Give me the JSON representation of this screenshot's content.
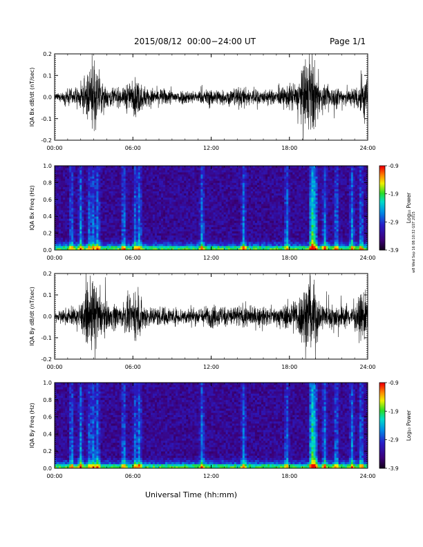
{
  "header": {
    "title": "2015/08/12  00:00−24:00 UT",
    "page": "Page 1/1",
    "timestamp": "w8 Wed Sep 16 08:10:32 GST 2015"
  },
  "xlabel": "Universal Time (hh:mm)",
  "chart_data": [
    {
      "type": "line",
      "title": "",
      "xlabel": "",
      "ylabel": "IQA Bx dB/dt (nT/sec)",
      "xticks": [
        "00:00",
        "06:00",
        "12:00",
        "18:00",
        "24:00"
      ],
      "xlim_hours": [
        0,
        24
      ],
      "ylim": [
        -0.2,
        0.2
      ],
      "yticks": [
        "0.2",
        "0.1",
        "0.0",
        "-0.1",
        "-0.2"
      ],
      "yvalues": [
        0.2,
        0.1,
        0.0,
        -0.1,
        -0.2
      ],
      "activity_envelope": {
        "hours": [
          0,
          0.5,
          1,
          1.5,
          2,
          2.5,
          2.8,
          3.1,
          3.4,
          3.8,
          4.2,
          4.6,
          5.2,
          5.6,
          5.9,
          6.2,
          6.6,
          7.2,
          8,
          9,
          10,
          11,
          12,
          13,
          14,
          15,
          16,
          17,
          17.8,
          18.3,
          18.7,
          19.2,
          19.6,
          19.9,
          20.3,
          20.8,
          21.5,
          22.2,
          22.8,
          23.3,
          23.7,
          24
        ],
        "amplitude": [
          0.02,
          0.03,
          0.06,
          0.05,
          0.08,
          0.15,
          0.25,
          0.25,
          0.12,
          0.1,
          0.06,
          0.08,
          0.05,
          0.12,
          0.07,
          0.15,
          0.1,
          0.06,
          0.06,
          0.05,
          0.05,
          0.04,
          0.06,
          0.05,
          0.07,
          0.06,
          0.05,
          0.05,
          0.08,
          0.1,
          0.12,
          0.25,
          0.25,
          0.25,
          0.1,
          0.07,
          0.08,
          0.07,
          0.06,
          0.1,
          0.18,
          0.12
        ]
      }
    },
    {
      "type": "heatmap",
      "title": "",
      "xlabel": "",
      "ylabel": "IQA Bx Freq (Hz)",
      "xticks": [
        "00:00",
        "06:00",
        "12:00",
        "18:00",
        "24:00"
      ],
      "xlim_hours": [
        0,
        24
      ],
      "ylim": [
        0,
        1.0
      ],
      "yticks": [
        "1.0",
        "0.8",
        "0.6",
        "0.4",
        "0.2",
        "0.0"
      ],
      "yvalues": [
        1.0,
        0.8,
        0.6,
        0.4,
        0.2,
        0.0
      ],
      "colorbar": {
        "label": "Log₁₀ Power",
        "min": -3.9,
        "max": -0.9,
        "ticks": [
          "-0.9",
          "-1.9",
          "-2.9",
          "-3.9"
        ],
        "tickvalues": [
          -0.9,
          -1.9,
          -2.9,
          -3.9
        ]
      },
      "bright_streaks_hours": [
        1.3,
        2.0,
        2.7,
        3.0,
        3.3,
        5.3,
        6.2,
        6.5,
        11.3,
        14.5,
        17.8,
        19.8,
        20.7,
        21.6,
        22.8,
        23.5
      ]
    },
    {
      "type": "line",
      "title": "",
      "xlabel": "",
      "ylabel": "IQA By dB/dt (nT/sec)",
      "xticks": [
        "00:00",
        "06:00",
        "12:00",
        "18:00",
        "24:00"
      ],
      "xlim_hours": [
        0,
        24
      ],
      "ylim": [
        -0.2,
        0.2
      ],
      "yticks": [
        "0.2",
        "0.1",
        "0.0",
        "-0.1",
        "-0.2"
      ],
      "yvalues": [
        0.2,
        0.1,
        0.0,
        -0.1,
        -0.2
      ],
      "activity_envelope": {
        "hours": [
          0,
          0.5,
          1,
          1.5,
          2,
          2.5,
          2.8,
          3.1,
          3.4,
          3.8,
          4.2,
          4.6,
          5.2,
          5.6,
          5.9,
          6.2,
          6.6,
          7.2,
          8,
          9,
          10,
          11,
          12,
          13,
          14,
          15,
          16,
          17,
          17.8,
          18.3,
          18.7,
          19.2,
          19.6,
          19.9,
          20.3,
          20.8,
          21.5,
          22.2,
          22.8,
          23.3,
          23.7,
          24
        ],
        "amplitude": [
          0.03,
          0.04,
          0.06,
          0.06,
          0.1,
          0.18,
          0.25,
          0.25,
          0.15,
          0.12,
          0.08,
          0.1,
          0.07,
          0.14,
          0.09,
          0.18,
          0.12,
          0.07,
          0.07,
          0.06,
          0.06,
          0.06,
          0.08,
          0.07,
          0.08,
          0.07,
          0.06,
          0.06,
          0.09,
          0.12,
          0.14,
          0.25,
          0.25,
          0.25,
          0.12,
          0.08,
          0.09,
          0.08,
          0.07,
          0.12,
          0.2,
          0.14
        ]
      }
    },
    {
      "type": "heatmap",
      "title": "",
      "xlabel": "",
      "ylabel": "IQA By Freq (Hz)",
      "xticks": [
        "00:00",
        "06:00",
        "12:00",
        "18:00",
        "24:00"
      ],
      "xlim_hours": [
        0,
        24
      ],
      "ylim": [
        0,
        1.0
      ],
      "yticks": [
        "1.0",
        "0.8",
        "0.6",
        "0.4",
        "0.2",
        "0.0"
      ],
      "yvalues": [
        1.0,
        0.8,
        0.6,
        0.4,
        0.2,
        0.0
      ],
      "colorbar": {
        "label": "Log₁₀ Power",
        "min": -3.9,
        "max": -0.9,
        "ticks": [
          "-0.9",
          "-1.9",
          "-2.9",
          "-3.9"
        ],
        "tickvalues": [
          -0.9,
          -1.9,
          -2.9,
          -3.9
        ]
      },
      "bright_streaks_hours": [
        1.3,
        2.0,
        2.7,
        3.0,
        3.3,
        5.3,
        6.2,
        6.5,
        11.3,
        14.5,
        17.8,
        19.8,
        20.7,
        21.6,
        22.8,
        23.5
      ]
    }
  ]
}
